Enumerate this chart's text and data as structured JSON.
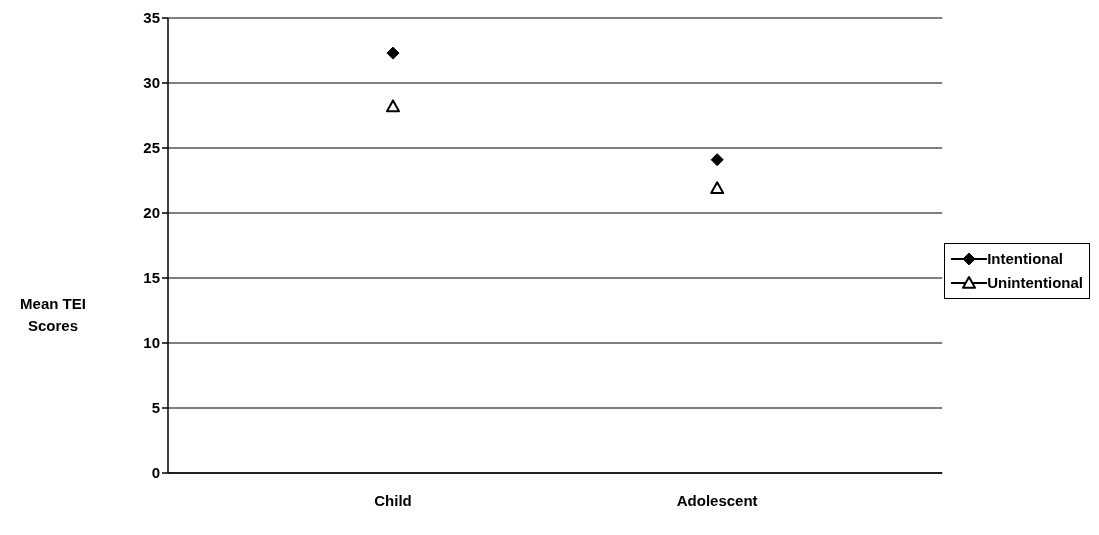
{
  "chart_data": {
    "type": "scatter",
    "ylabel": "Mean TEI Scores",
    "categories": [
      "Child",
      "Adolescent"
    ],
    "series": [
      {
        "name": "Intentional",
        "color": "#000000",
        "marker": "diamond",
        "values": [
          32.3,
          24.1
        ]
      },
      {
        "name": "Unintentional",
        "color": "#000000",
        "marker": "triangle",
        "values": [
          28.2,
          21.9
        ]
      }
    ],
    "ylim": [
      0,
      35
    ],
    "yticks": [
      0,
      5,
      10,
      15,
      20,
      25,
      30,
      35
    ],
    "grid": "y",
    "legend": "right"
  }
}
